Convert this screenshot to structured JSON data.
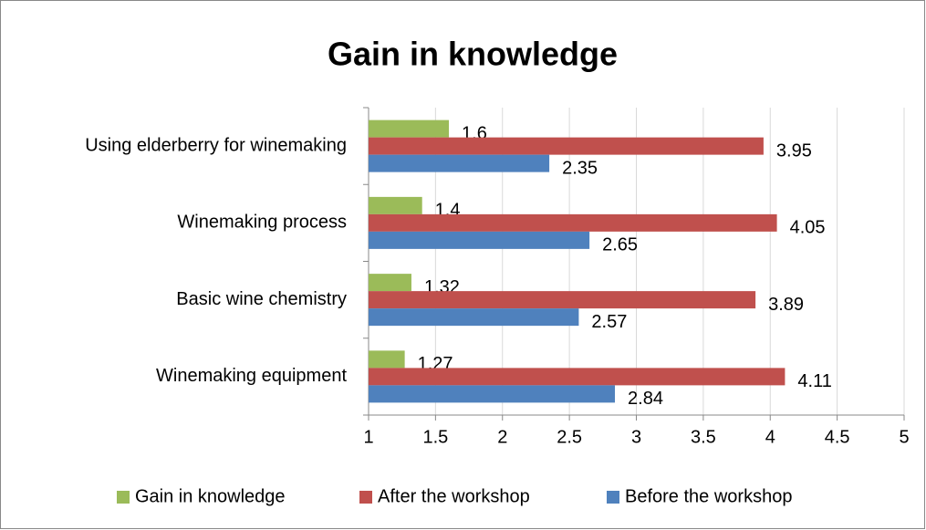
{
  "chart_data": {
    "type": "hbar",
    "title": "Gain in knowledge",
    "categories": [
      "Using elderberry for winemaking",
      "Winemaking process",
      "Basic wine chemistry",
      "Winemaking equipment"
    ],
    "series": [
      {
        "name": "Gain in knowledge",
        "color": "#9bbb59",
        "values": [
          1.6,
          1.4,
          1.32,
          1.27
        ]
      },
      {
        "name": "After the workshop",
        "color": "#c0504d",
        "values": [
          3.95,
          4.05,
          3.89,
          4.11
        ]
      },
      {
        "name": "Before the workshop",
        "color": "#4f81bd",
        "values": [
          2.35,
          2.65,
          2.57,
          2.84
        ]
      }
    ],
    "xlim": [
      1,
      5
    ],
    "xticks": [
      1,
      1.5,
      2,
      2.5,
      3,
      3.5,
      4,
      4.5,
      5
    ],
    "grid": true,
    "legend": "bottom"
  }
}
